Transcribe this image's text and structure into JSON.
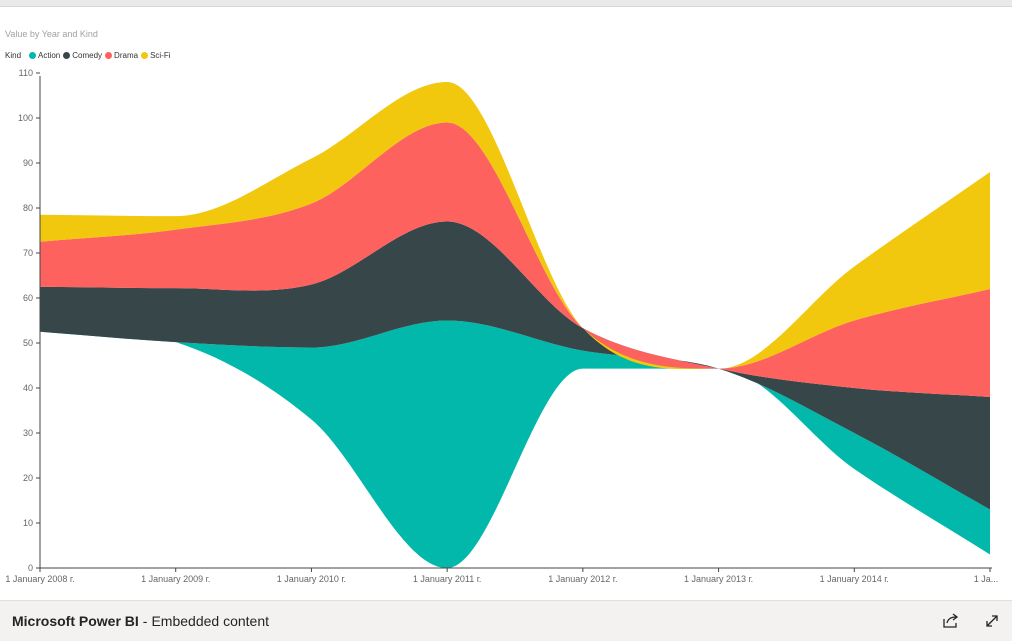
{
  "visual": {
    "title": "Value by Year and Kind"
  },
  "legend": {
    "title": "Kind",
    "items": [
      {
        "label": "Action",
        "color": "#01B8AA"
      },
      {
        "label": "Comedy",
        "color": "#374649"
      },
      {
        "label": "Drama",
        "color": "#FD625E"
      },
      {
        "label": "Sci-Fi",
        "color": "#F2C80F"
      }
    ]
  },
  "footer": {
    "brand": "Microsoft Power BI",
    "separator": "-",
    "description": "Embedded content",
    "share_icon": "share-icon",
    "fullscreen_icon": "expand-icon"
  },
  "chart_data": {
    "type": "area",
    "subtype": "streamgraph",
    "title": "Value by Year and Kind",
    "x": [
      "1 January 2008 г.",
      "1 January 2009 г.",
      "1 January 2010 г.",
      "1 January 2011 г.",
      "1 January 2012 г.",
      "1 January 2013 г.",
      "1 January 2014 г.",
      "1 Ja..."
    ],
    "series": [
      {
        "name": "Action",
        "color": "#01B8AA",
        "values": [
          0,
          0,
          16,
          55,
          4,
          0,
          8,
          10
        ]
      },
      {
        "name": "Comedy",
        "color": "#374649",
        "values": [
          10,
          12,
          14,
          22,
          5,
          0,
          10,
          25
        ]
      },
      {
        "name": "Drama",
        "color": "#FD625E",
        "values": [
          10,
          13,
          18,
          22,
          0,
          0,
          15,
          24
        ]
      },
      {
        "name": "Sci-Fi",
        "color": "#F2C80F",
        "values": [
          6,
          3,
          10,
          9,
          0,
          0,
          12,
          26
        ]
      }
    ],
    "baseline": [
      52.5,
      50.2,
      33,
      0,
      44.3,
      44.3,
      22,
      3
    ],
    "y_ticks": [
      0,
      10,
      20,
      30,
      40,
      50,
      60,
      70,
      80,
      90,
      100,
      110
    ],
    "ylim": [
      0,
      110
    ],
    "grid": false,
    "legend_position": "top-left"
  }
}
